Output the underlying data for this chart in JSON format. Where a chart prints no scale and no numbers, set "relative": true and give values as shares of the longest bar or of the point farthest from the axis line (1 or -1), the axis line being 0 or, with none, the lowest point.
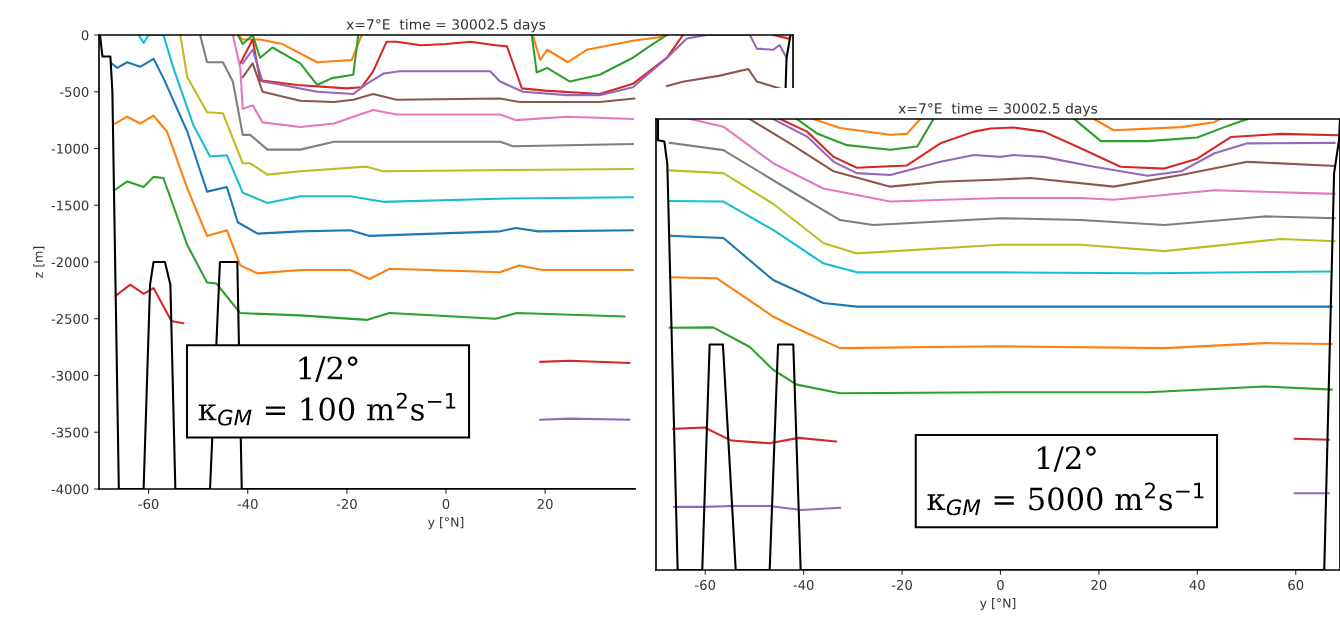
{
  "chart_data": [
    {
      "type": "line",
      "title": "x=7°E  time = 30002.5 days",
      "xlabel": "y [°N]",
      "ylabel": "z [m]",
      "xlim": [
        -70,
        70
      ],
      "ylim": [
        -4000,
        0
      ],
      "xticks": [
        -60,
        -40,
        -20,
        0,
        20
      ],
      "yticks": [
        0,
        -500,
        -1000,
        -1500,
        -2000,
        -2500,
        -3000,
        -3500,
        -4000
      ],
      "annotations": [
        "1/2°\nκ$_{GM}$ = 100 m$^{2}$s$^{−1}$"
      ],
      "series": [
        {
          "color": "#ff7f0e",
          "x": [
            -42,
            -41,
            -37.5,
            -33,
            -26,
            -19,
            -17,
            0,
            17.5,
            19,
            20.4,
            24.6,
            28.4,
            37.7,
            43,
            44
          ],
          "values": [
            0,
            -40,
            -40,
            -80,
            -240,
            -220,
            0,
            null,
            0,
            -220,
            -130,
            -240,
            -130,
            -50,
            -20,
            0
          ]
        },
        {
          "color": "#2ca02c",
          "x": [
            -42,
            -41,
            -39,
            -37.5,
            -35,
            -29.4,
            -26,
            -23,
            -18.7,
            -17.7,
            0,
            17.3,
            18.3,
            20.4,
            25,
            31,
            37.7,
            41.7,
            44.6
          ],
          "values": [
            0,
            -80,
            0,
            -200,
            -110,
            -250,
            -440,
            -380,
            -350,
            0,
            null,
            0,
            -330,
            -290,
            -410,
            -350,
            -200,
            -80,
            0
          ]
        },
        {
          "color": "#d62728",
          "x": [
            -41.5,
            -39,
            -37.5,
            -30,
            -20,
            -17,
            -14.7,
            -12,
            -10,
            -5,
            0,
            5,
            10,
            12.3,
            15.3,
            20,
            31,
            37.7,
            44.6,
            47.8,
            55,
            66,
            69
          ],
          "values": [
            -250,
            -40,
            -400,
            -440,
            -470,
            -460,
            -320,
            -60,
            -60,
            -90,
            -80,
            -60,
            -90,
            -100,
            -470,
            -490,
            -520,
            -430,
            -200,
            0,
            null,
            0,
            -30
          ]
        },
        {
          "color": "#9467bd",
          "x": [
            -41,
            -39,
            -37,
            -33,
            -26,
            -18.7,
            -16,
            -12.6,
            -9.3,
            8.9,
            10.9,
            15.5,
            24.4,
            31,
            37.7,
            44.6,
            48.6,
            52.6,
            61.3,
            62.7,
            66,
            67.3,
            68.7
          ],
          "values": [
            -250,
            -130,
            -410,
            -440,
            -500,
            -520,
            -430,
            -340,
            -320,
            -320,
            -410,
            -500,
            -530,
            -530,
            -460,
            -200,
            -30,
            0,
            0,
            -120,
            -130,
            -90,
            -200
          ]
        },
        {
          "color": "#8c564b",
          "x": [
            -41,
            -39,
            -37,
            -29.4,
            -22.6,
            -18.7,
            -14.7,
            -10,
            10.9,
            14.8,
            31,
            38,
            40,
            44.6,
            48,
            55,
            61,
            62.7,
            68
          ],
          "values": [
            -370,
            -250,
            -500,
            -580,
            -590,
            -570,
            -520,
            -570,
            -560,
            -590,
            -590,
            -560,
            null,
            -450,
            -410,
            -360,
            -300,
            -410,
            -480
          ]
        },
        {
          "color": "#e377c2",
          "x": [
            -43,
            -41.5,
            -41,
            -39,
            -37,
            -29.4,
            -22.6,
            -14.7,
            -10,
            10.9,
            14.1,
            24.4,
            37.7
          ],
          "values": [
            0,
            -290,
            -650,
            -620,
            -770,
            -810,
            -780,
            -660,
            -700,
            -700,
            -750,
            -720,
            -740
          ]
        },
        {
          "color": "#7f7f7f",
          "x": [
            -49.6,
            -48.2,
            -45,
            -43,
            -41,
            -39.5,
            -36,
            -29.4,
            -22.6,
            -14.7,
            10.9,
            13.5,
            37.7
          ],
          "values": [
            0,
            -240,
            -240,
            -410,
            -880,
            -880,
            -1010,
            -1010,
            -940,
            -940,
            -940,
            -980,
            -960
          ]
        },
        {
          "color": "#bcbd22",
          "x": [
            -53.6,
            -52.2,
            -48.2,
            -45,
            -41,
            -39.5,
            -36,
            -29.4,
            -16,
            -12.7,
            13.1,
            37.7
          ],
          "values": [
            0,
            -370,
            -680,
            -690,
            -1130,
            -1130,
            -1230,
            -1200,
            -1160,
            -1200,
            -1190,
            -1180
          ]
        },
        {
          "color": "#17becf",
          "x": [
            -62,
            -61,
            -60,
            -57,
            -55,
            -51,
            -47.6,
            -44.2,
            -41,
            -36,
            -29.4,
            -19.3,
            -12.7,
            12.5,
            37.7
          ],
          "values": [
            0,
            -70,
            0,
            0,
            -290,
            -790,
            -1070,
            -1060,
            -1390,
            -1480,
            -1420,
            -1420,
            -1470,
            -1440,
            -1430
          ]
        },
        {
          "color": "#1f77b4",
          "x": [
            -67.5,
            -66.3,
            -64.3,
            -61.7,
            -59,
            -57,
            -52.2,
            -48.2,
            -44.2,
            -42,
            -38,
            -29.4,
            -19.3,
            -15.4,
            10.9,
            14.1,
            18.6,
            37.7
          ],
          "values": [
            -250,
            -290,
            -240,
            -280,
            -210,
            -380,
            -850,
            -1380,
            -1340,
            -1650,
            -1750,
            -1730,
            -1720,
            -1770,
            -1730,
            -1700,
            -1730,
            -1720
          ]
        },
        {
          "color": "#ff7f0e",
          "x": [
            -67.1,
            -64.3,
            -61.7,
            -59,
            -56.3,
            -52.2,
            -48.2,
            -44.2,
            -41.5,
            -38,
            -29.4,
            -19.3,
            -15.4,
            -11.4,
            10.9,
            14.8,
            19.5,
            37.7
          ],
          "values": [
            -790,
            -720,
            -780,
            -710,
            -850,
            -1350,
            -1770,
            -1720,
            -2030,
            -2100,
            -2070,
            -2070,
            -2150,
            -2060,
            -2090,
            -2030,
            -2070,
            -2070
          ]
        },
        {
          "color": "#2ca02c",
          "x": [
            -67,
            -64.3,
            -61,
            -59,
            -57,
            -52.2,
            -48.2,
            -46.3,
            -43,
            -41.5,
            -29.4,
            -16,
            -11.4,
            10,
            14.3,
            36
          ],
          "values": [
            -1370,
            -1290,
            -1340,
            -1250,
            -1260,
            -1850,
            -2180,
            -2190,
            -2370,
            -2450,
            -2470,
            -2510,
            -2450,
            -2500,
            -2450,
            -2480
          ]
        },
        {
          "color": "#d62728",
          "x": [
            -66.7,
            -63.7,
            -61,
            -59,
            -55.4,
            -53,
            0,
            19,
            25,
            37
          ],
          "values": [
            -2300,
            -2200,
            -2280,
            -2230,
            -2520,
            -2540,
            null,
            -2880,
            -2870,
            -2890
          ]
        },
        {
          "color": "#9467bd",
          "x": [
            19,
            25,
            37
          ],
          "values": [
            -3390,
            -3380,
            -3390
          ]
        },
        {
          "color": "#000000",
          "x": [
            -69.8,
            -69.3,
            -67.7,
            -67.3,
            -66,
            -61,
            -59.7,
            -59,
            -56.7,
            -55.6,
            -54.6,
            -47.6,
            -45.6,
            -42.1,
            -41.2,
            38,
            40,
            68.5,
            68.7,
            69.5
          ],
          "values": [
            0,
            -190,
            -190,
            -500,
            -4000,
            -4000,
            -2200,
            -2000,
            -2000,
            -2200,
            -4000,
            -4000,
            -2000,
            -2000,
            -4000,
            -4000,
            null,
            -480,
            -200,
            0
          ]
        }
      ]
    },
    {
      "type": "line",
      "title": "x=7°E  time = 30002.5 days",
      "xlabel": "y [°N]",
      "relative": true,
      "xlim": [
        -70,
        69
      ],
      "xticks": [
        -60,
        -40,
        -20,
        0,
        20,
        40,
        60
      ],
      "annotations": [
        "1/2°\nκ$_{GM}$ = 5000 m$^{2}$s$^{−1}$"
      ],
      "series": [
        {
          "color": "#ff7f0e",
          "x": [
            -38,
            -32.6,
            -22.4,
            -19,
            -16.3,
            0,
            19,
            23,
            36.7,
            43.4,
            44.7
          ],
          "values": [
            0,
            -0.02,
            -0.035,
            -0.033,
            0,
            null,
            0,
            -0.025,
            -0.018,
            -0.007,
            0
          ]
        },
        {
          "color": "#2ca02c",
          "x": [
            -41.4,
            -37.3,
            -31.2,
            -22.4,
            -16.9,
            -13.6,
            0,
            15,
            20.4,
            29.9,
            40,
            45.5,
            50.2
          ],
          "values": [
            0,
            -0.032,
            -0.058,
            -0.068,
            -0.061,
            0,
            null,
            0,
            -0.049,
            -0.049,
            -0.041,
            -0.018,
            0
          ]
        },
        {
          "color": "#d62728",
          "x": [
            -44.8,
            -39.3,
            -33.9,
            -29.2,
            -19,
            -12.2,
            -5.4,
            -2,
            2.7,
            8.8,
            16.3,
            24.4,
            33.3,
            40,
            46.8,
            57,
            68.5
          ],
          "values": [
            0,
            -0.028,
            -0.084,
            -0.108,
            -0.103,
            -0.054,
            -0.028,
            -0.021,
            -0.019,
            -0.028,
            -0.065,
            -0.106,
            -0.11,
            -0.088,
            -0.04,
            -0.033,
            -0.036
          ]
        },
        {
          "color": "#9467bd",
          "x": [
            -46.2,
            -39.3,
            -33.9,
            -29.2,
            -22.4,
            -12.2,
            -5.4,
            0,
            2.7,
            8.8,
            19,
            29.9,
            36.7,
            43.5,
            50.2,
            67.9
          ],
          "values": [
            0,
            -0.039,
            -0.095,
            -0.12,
            -0.124,
            -0.095,
            -0.08,
            -0.084,
            -0.08,
            -0.084,
            -0.106,
            -0.126,
            -0.116,
            -0.076,
            -0.054,
            -0.053
          ]
        },
        {
          "color": "#8c564b",
          "x": [
            -51,
            -42.8,
            -33.9,
            -22.4,
            -12.2,
            0,
            6.1,
            23,
            36.7,
            50.2,
            67.9
          ],
          "values": [
            0,
            -0.054,
            -0.116,
            -0.15,
            -0.139,
            -0.134,
            -0.131,
            -0.15,
            -0.124,
            -0.095,
            -0.104
          ]
        },
        {
          "color": "#e377c2",
          "x": [
            -63.1,
            -56.3,
            -46.2,
            -36,
            -22.4,
            0,
            16.3,
            23,
            43.5,
            67.9
          ],
          "values": [
            0,
            -0.017,
            -0.098,
            -0.154,
            -0.183,
            -0.175,
            -0.175,
            -0.179,
            -0.158,
            -0.166
          ]
        },
        {
          "color": "#7f7f7f",
          "x": [
            -67.2,
            -56.3,
            -42.8,
            -32.6,
            -25.8,
            0,
            16.3,
            33.3,
            53.7,
            67.9
          ],
          "values": [
            -0.053,
            -0.069,
            -0.158,
            -0.224,
            -0.235,
            -0.22,
            -0.224,
            -0.235,
            -0.216,
            -0.22
          ]
        },
        {
          "color": "#bcbd22",
          "x": [
            -67.2,
            -56.3,
            -46.2,
            -36,
            -29.2,
            0,
            16.3,
            33.3,
            57,
            67.9
          ],
          "values": [
            -0.114,
            -0.12,
            -0.188,
            -0.275,
            -0.298,
            -0.279,
            -0.279,
            -0.293,
            -0.266,
            -0.271
          ]
        },
        {
          "color": "#17becf",
          "x": [
            -67.2,
            -56.3,
            -46.2,
            -36,
            -29.2,
            0,
            30,
            67.3
          ],
          "values": [
            -0.182,
            -0.183,
            -0.246,
            -0.32,
            -0.34,
            -0.34,
            -0.342,
            -0.338
          ]
        },
        {
          "color": "#1f77b4",
          "x": [
            -67.2,
            -56.3,
            -46.2,
            -36,
            -29.2,
            0,
            67.3
          ],
          "values": [
            -0.259,
            -0.264,
            -0.357,
            -0.408,
            -0.416,
            -0.416,
            -0.416
          ]
        },
        {
          "color": "#ff7f0e",
          "x": [
            -67.2,
            -57.7,
            -46.2,
            -40.7,
            -32.6,
            0,
            33.3,
            53.7,
            67.3
          ],
          "values": [
            -0.351,
            -0.353,
            -0.438,
            -0.468,
            -0.508,
            -0.504,
            -0.508,
            -0.497,
            -0.499
          ]
        },
        {
          "color": "#2ca02c",
          "x": [
            -67.2,
            -58.4,
            -51,
            -46.2,
            -41.4,
            -32.6,
            0,
            30,
            53.7,
            67.3
          ],
          "values": [
            -0.463,
            -0.462,
            -0.505,
            -0.556,
            -0.589,
            -0.608,
            -0.606,
            -0.606,
            -0.593,
            -0.6
          ]
        },
        {
          "color": "#d62728",
          "x": [
            -66.5,
            -60.1,
            -54.7,
            -46.9,
            -41,
            -33.4,
            0,
            59.8,
            66.7
          ],
          "values": [
            -0.687,
            -0.684,
            -0.713,
            -0.719,
            -0.707,
            -0.715,
            null,
            -0.709,
            -0.711
          ]
        },
        {
          "color": "#9467bd",
          "x": [
            -66.3,
            -60.5,
            -54.3,
            -46.9,
            -40.5,
            -32.6,
            0,
            59.8,
            66.7
          ],
          "values": [
            -0.86,
            -0.86,
            -0.858,
            -0.858,
            -0.867,
            -0.862,
            null,
            -0.83,
            -0.83
          ]
        },
        {
          "color": "#000000",
          "x": [
            -69.6,
            -69.6,
            -68.3,
            -67.7,
            -65.6,
            -60.6,
            -59.1,
            -56.4,
            -53.8,
            -46.9,
            -45.2,
            -42.1,
            -40.6,
            65.8,
            67.8,
            68.8,
            69
          ],
          "values": [
            0,
            -0.047,
            -0.05,
            -0.1,
            -1,
            -1,
            -0.5,
            -0.5,
            -1,
            -1,
            -0.5,
            -0.5,
            -1,
            -1,
            -0.12,
            -0.047,
            0
          ]
        }
      ]
    }
  ]
}
